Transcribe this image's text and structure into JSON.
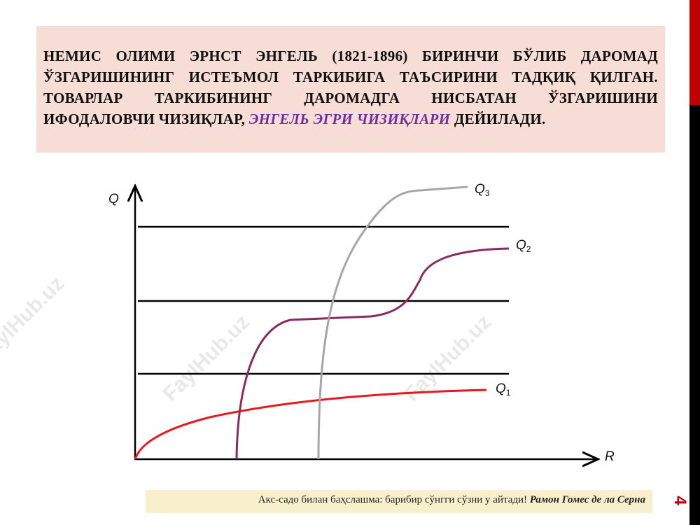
{
  "header": {
    "text": "НЕМИС ОЛИМИ ЭРНСТ ЭНГЕЛЬ (1821-1896) БИРИНЧИ БЎЛИБ ДАРОМАД ЎЗГАРИШИНИНГ ИСТЕЪМОЛ ТАРКИБИГА ТАЪСИРИНИ ТАДҚИҚ ҚИЛГАН. ТОВАРЛАР ТАРКИБИНИНГ ДАРОМАДГА НИСБАТАН ЎЗГАРИШИНИ ИФОДАЛОВЧИ ЧИЗИҚЛАР,",
    "highlight": "ЭНГЕЛЬ ЭГРИ ЧИЗИҚЛАРИ",
    "ending": "ДЕЙИЛАДИ."
  },
  "diagram": {
    "y_axis": "Q",
    "x_axis": "R",
    "curves": [
      {
        "name": "Q",
        "index": "3"
      },
      {
        "name": "Q",
        "index": "2"
      },
      {
        "name": "Q",
        "index": "1"
      }
    ]
  },
  "footer": {
    "quote": "Акс-садо билан баҳслашма: барибир сўнгги сўзни у айтади!",
    "author": "Рамон Гомес де ла Серна"
  },
  "page_number": "4",
  "watermark": "FaylHub.uz"
}
